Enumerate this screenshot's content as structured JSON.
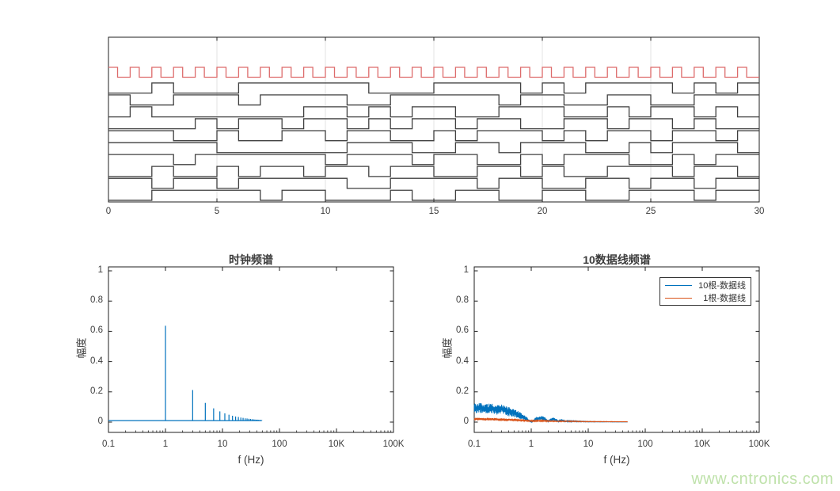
{
  "watermark": {
    "text": "www.cntronics.com",
    "color": "#bfe2ab"
  },
  "colors": {
    "blue": "#0072BD",
    "orange": "#D95319",
    "clock_red": "#dd6b6b",
    "data_black": "#3f3f3f",
    "axis": "#1f1f1f",
    "grid": "#e3e3e3",
    "tick_text": "#3c3c3c"
  },
  "chart_data": [
    {
      "type": "line",
      "name": "digital-waveforms",
      "title": "",
      "xlim": [
        0,
        30
      ],
      "xticks": [
        0,
        5,
        10,
        15,
        20,
        25,
        30
      ],
      "xtick_labels": [
        "0",
        "5",
        "10",
        "15",
        "20",
        "25",
        "30"
      ],
      "gridlines_x": [
        5,
        10,
        15,
        20,
        25
      ],
      "clock": {
        "period": 1,
        "duty": 0.42,
        "cycles": 30,
        "starts_high": true
      },
      "data_lines": [
        [
          0,
          0,
          1,
          0,
          0,
          0,
          1,
          1,
          1,
          1,
          1,
          1,
          0,
          0,
          0,
          1,
          1,
          1,
          1,
          0,
          1,
          0,
          1,
          1,
          1,
          1,
          0,
          1,
          0,
          1
        ],
        [
          1,
          0,
          0,
          1,
          1,
          1,
          0,
          1,
          1,
          1,
          1,
          0,
          0,
          1,
          1,
          1,
          1,
          1,
          0,
          1,
          1,
          0,
          0,
          1,
          1,
          0,
          0,
          1,
          1,
          1
        ],
        [
          0,
          1,
          0,
          0,
          0,
          0,
          0,
          0,
          0,
          1,
          1,
          0,
          1,
          0,
          1,
          1,
          0,
          0,
          1,
          1,
          1,
          0,
          0,
          1,
          0,
          1,
          1,
          0,
          1,
          0
        ],
        [
          0,
          0,
          0,
          0,
          1,
          0,
          1,
          1,
          0,
          1,
          1,
          0,
          1,
          0,
          1,
          1,
          0,
          1,
          1,
          0,
          0,
          1,
          1,
          0,
          1,
          1,
          0,
          1,
          0,
          0
        ],
        [
          1,
          1,
          1,
          0,
          0,
          1,
          0,
          0,
          1,
          1,
          0,
          1,
          1,
          0,
          0,
          1,
          0,
          1,
          1,
          1,
          0,
          1,
          0,
          1,
          1,
          0,
          1,
          1,
          0,
          1
        ],
        [
          1,
          1,
          1,
          1,
          1,
          0,
          0,
          0,
          0,
          0,
          0,
          1,
          1,
          1,
          0,
          0,
          1,
          1,
          0,
          1,
          1,
          1,
          0,
          0,
          1,
          0,
          1,
          1,
          1,
          0
        ],
        [
          1,
          1,
          1,
          0,
          1,
          1,
          1,
          1,
          1,
          1,
          0,
          1,
          1,
          1,
          0,
          1,
          1,
          0,
          0,
          1,
          0,
          1,
          1,
          1,
          0,
          0,
          1,
          0,
          1,
          1
        ],
        [
          0,
          0,
          1,
          0,
          0,
          1,
          0,
          1,
          1,
          0,
          1,
          1,
          0,
          1,
          1,
          0,
          0,
          1,
          1,
          0,
          1,
          0,
          0,
          1,
          1,
          1,
          0,
          1,
          1,
          0
        ],
        [
          1,
          1,
          0,
          1,
          1,
          0,
          1,
          1,
          1,
          1,
          1,
          0,
          0,
          1,
          1,
          1,
          1,
          0,
          1,
          1,
          0,
          0,
          1,
          1,
          0,
          1,
          1,
          0,
          1,
          1
        ],
        [
          0,
          0,
          1,
          1,
          1,
          1,
          1,
          0,
          1,
          1,
          0,
          0,
          0,
          1,
          0,
          0,
          1,
          1,
          0,
          0,
          1,
          1,
          0,
          0,
          1,
          1,
          1,
          0,
          1,
          1
        ]
      ]
    },
    {
      "type": "stem",
      "name": "clock-spectrum",
      "title": "时钟频谱",
      "xlabel": "f (Hz)",
      "ylabel": "幅度",
      "xscale": "log",
      "xtick_labels": [
        "0.1",
        "1",
        "10",
        "100",
        "10K",
        "100K"
      ],
      "ytick_labels": [
        "0",
        "0.2",
        "0.4",
        "0.6",
        "0.8",
        "1"
      ],
      "yticks": [
        0,
        0.2,
        0.4,
        0.6,
        0.8,
        1
      ],
      "ylim": [
        0,
        1
      ],
      "baseline_value": 0.01,
      "baseline_range_hz": [
        0.1,
        49
      ],
      "harmonics": [
        {
          "f": 1,
          "a": 0.637
        },
        {
          "f": 3,
          "a": 0.212
        },
        {
          "f": 5,
          "a": 0.127
        },
        {
          "f": 7,
          "a": 0.091
        },
        {
          "f": 9,
          "a": 0.071
        },
        {
          "f": 11,
          "a": 0.058
        },
        {
          "f": 13,
          "a": 0.049
        },
        {
          "f": 15,
          "a": 0.042
        },
        {
          "f": 17,
          "a": 0.037
        },
        {
          "f": 19,
          "a": 0.034
        },
        {
          "f": 21,
          "a": 0.03
        },
        {
          "f": 23,
          "a": 0.028
        },
        {
          "f": 25,
          "a": 0.025
        },
        {
          "f": 27,
          "a": 0.024
        },
        {
          "f": 29,
          "a": 0.022
        },
        {
          "f": 31,
          "a": 0.021
        },
        {
          "f": 33,
          "a": 0.019
        },
        {
          "f": 35,
          "a": 0.018
        },
        {
          "f": 37,
          "a": 0.017
        },
        {
          "f": 39,
          "a": 0.016
        },
        {
          "f": 41,
          "a": 0.016
        },
        {
          "f": 43,
          "a": 0.015
        },
        {
          "f": 45,
          "a": 0.014
        },
        {
          "f": 47,
          "a": 0.014
        },
        {
          "f": 49,
          "a": 0.013
        }
      ]
    },
    {
      "type": "line",
      "name": "data-lines-spectrum",
      "title": "10数据线频谱",
      "xlabel": "f (Hz)",
      "ylabel": "幅度",
      "xscale": "log",
      "xtick_labels": [
        "0.1",
        "1",
        "10",
        "100",
        "10K",
        "100K"
      ],
      "ytick_labels": [
        "0",
        "0.2",
        "0.4",
        "0.6",
        "0.8",
        "1"
      ],
      "yticks": [
        0,
        0.2,
        0.4,
        0.6,
        0.8,
        1
      ],
      "ylim": [
        0,
        1
      ],
      "legend": [
        {
          "label": "10根-数据线",
          "color": "#0072BD"
        },
        {
          "label": "1根-数据线",
          "color": "#D95319"
        }
      ],
      "series": [
        {
          "name": "10根-数据线",
          "style": "noisy-band",
          "envelope": [
            [
              0.1,
              0.045,
              0.125
            ],
            [
              0.13,
              0.05,
              0.13
            ],
            [
              0.16,
              0.045,
              0.12
            ],
            [
              0.2,
              0.05,
              0.125
            ],
            [
              0.25,
              0.04,
              0.115
            ],
            [
              0.3,
              0.05,
              0.12
            ],
            [
              0.35,
              0.04,
              0.11
            ],
            [
              0.4,
              0.03,
              0.1
            ],
            [
              0.5,
              0.025,
              0.09
            ],
            [
              0.6,
              0.02,
              0.075
            ],
            [
              0.7,
              0.01,
              0.055
            ],
            [
              0.8,
              0.005,
              0.04
            ],
            [
              0.9,
              0.002,
              0.02
            ],
            [
              0.97,
              0.0,
              0.008
            ],
            [
              1.05,
              0.0,
              0.01
            ],
            [
              1.2,
              0.005,
              0.035
            ],
            [
              1.5,
              0.01,
              0.042
            ],
            [
              1.8,
              0.005,
              0.03
            ],
            [
              2.0,
              0.001,
              0.01
            ],
            [
              2.2,
              0.004,
              0.025
            ],
            [
              2.5,
              0.006,
              0.03
            ],
            [
              2.8,
              0.003,
              0.02
            ],
            [
              3.0,
              0.001,
              0.008
            ],
            [
              3.3,
              0.003,
              0.018
            ],
            [
              3.5,
              0.004,
              0.02
            ],
            [
              3.8,
              0.002,
              0.014
            ],
            [
              4.0,
              0.001,
              0.006
            ],
            [
              4.4,
              0.002,
              0.013
            ],
            [
              4.8,
              0.001,
              0.008
            ],
            [
              5.5,
              0.002,
              0.01
            ],
            [
              6.5,
              0.001,
              0.007
            ],
            [
              8.0,
              0.001,
              0.006
            ],
            [
              10.0,
              0.0005,
              0.004
            ],
            [
              15.0,
              0.0005,
              0.003
            ],
            [
              20.0,
              0.0005,
              0.003
            ],
            [
              30.0,
              0.0003,
              0.002
            ],
            [
              49.0,
              0.0003,
              0.002
            ]
          ]
        },
        {
          "name": "1根-数据线",
          "style": "noisy-band",
          "envelope": [
            [
              0.1,
              0.008,
              0.03
            ],
            [
              0.2,
              0.008,
              0.028
            ],
            [
              0.3,
              0.006,
              0.025
            ],
            [
              0.5,
              0.005,
              0.022
            ],
            [
              0.7,
              0.004,
              0.018
            ],
            [
              0.9,
              0.003,
              0.012
            ],
            [
              1.1,
              0.003,
              0.012
            ],
            [
              1.5,
              0.003,
              0.014
            ],
            [
              2.0,
              0.002,
              0.01
            ],
            [
              3.0,
              0.002,
              0.009
            ],
            [
              5.0,
              0.0015,
              0.008
            ],
            [
              8.0,
              0.001,
              0.006
            ],
            [
              15.0,
              0.001,
              0.005
            ],
            [
              30.0,
              0.0008,
              0.004
            ],
            [
              49.0,
              0.0008,
              0.004
            ]
          ]
        }
      ]
    }
  ]
}
